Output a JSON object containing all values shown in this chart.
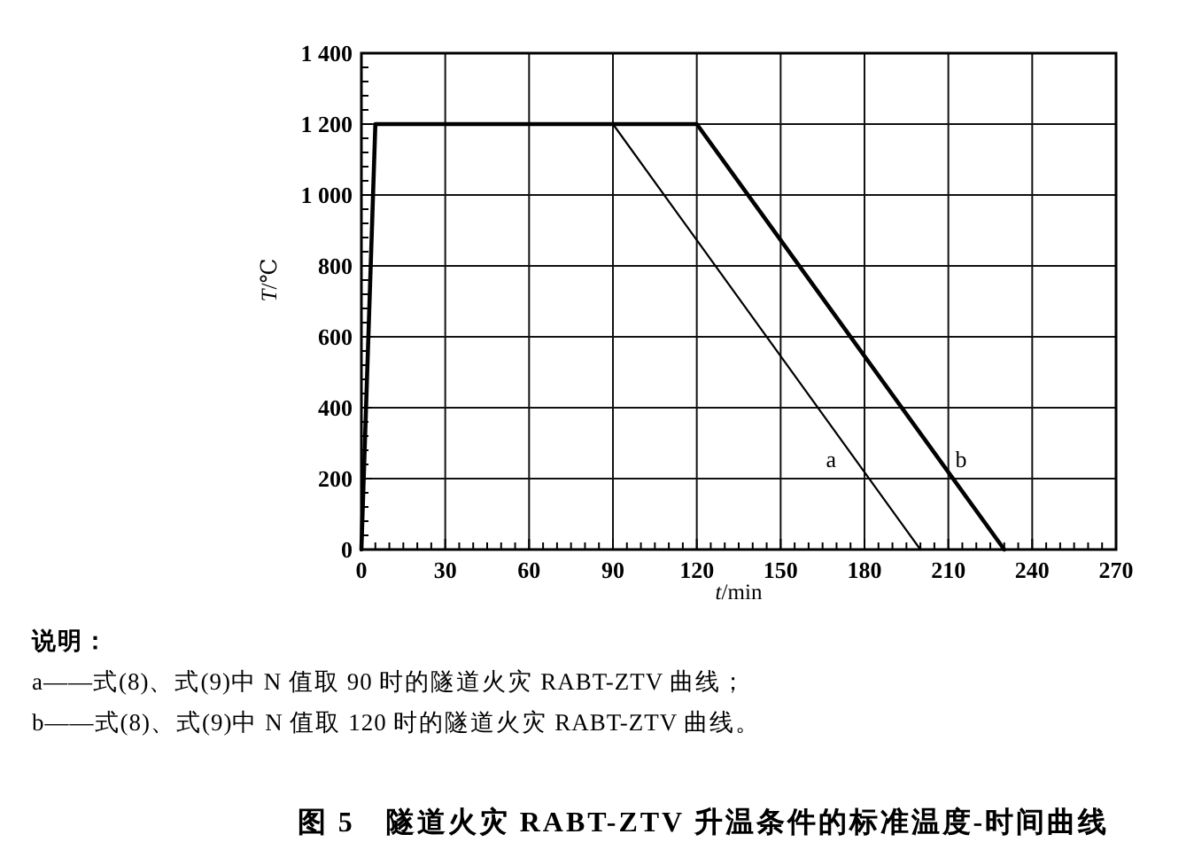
{
  "chart_data": {
    "type": "line",
    "title": "图 5　隧道火灾 RABT-ZTV 升温条件的标准温度-时间曲线",
    "xlabel": "t/min",
    "ylabel": "T/℃",
    "series": [
      {
        "name": "a",
        "color": "#000000",
        "x": [
          90,
          200
        ],
        "values": [
          1200,
          0
        ]
      },
      {
        "name": "b",
        "color": "#000000",
        "x": [
          0,
          5,
          120,
          230
        ],
        "values": [
          0,
          1200,
          1200,
          0
        ]
      }
    ],
    "xlim": [
      0,
      270
    ],
    "xticks": [
      0,
      {
        "value": 5,
        "label": null
      },
      {
        "value": 10,
        "label": null
      },
      {
        "value": 15,
        "label": null
      },
      {
        "value": 20,
        "label": null
      },
      {
        "value": 25,
        "label": null
      },
      30,
      {
        "value": 35,
        "label": null
      },
      {
        "value": 40,
        "label": null
      },
      {
        "value": 45,
        "label": null
      },
      {
        "value": 50,
        "label": null
      },
      {
        "value": 55,
        "label": null
      },
      60,
      {
        "value": 65,
        "label": null
      },
      {
        "value": 70,
        "label": null
      },
      {
        "value": 75,
        "label": null
      },
      {
        "value": 80,
        "label": null
      },
      {
        "value": 85,
        "label": null
      },
      90,
      {
        "value": 95,
        "label": null
      },
      {
        "value": 100,
        "label": null
      },
      {
        "value": 105,
        "label": null
      },
      {
        "value": 110,
        "label": null
      },
      {
        "value": 115,
        "label": null
      },
      120,
      {
        "value": 125,
        "label": null
      },
      {
        "value": 130,
        "label": null
      },
      {
        "value": 135,
        "label": null
      },
      {
        "value": 140,
        "label": null
      },
      {
        "value": 145,
        "label": null
      },
      150,
      {
        "value": 155,
        "label": null
      },
      {
        "value": 160,
        "label": null
      },
      {
        "value": 165,
        "label": null
      },
      {
        "value": 170,
        "label": null
      },
      {
        "value": 175,
        "label": null
      },
      180,
      {
        "value": 185,
        "label": null
      },
      {
        "value": 190,
        "label": null
      },
      {
        "value": 195,
        "label": null
      },
      {
        "value": 200,
        "label": null
      },
      {
        "value": 205,
        "label": null
      },
      210,
      {
        "value": 215,
        "label": null
      },
      {
        "value": 220,
        "label": null
      },
      {
        "value": 225,
        "label": null
      },
      {
        "value": 230,
        "label": null
      },
      {
        "value": 235,
        "label": null
      },
      240,
      {
        "value": 245,
        "label": null
      },
      {
        "value": 250,
        "label": null
      },
      {
        "value": 255,
        "label": null
      },
      {
        "value": 260,
        "label": null
      },
      {
        "value": 265,
        "label": null
      },
      270
    ],
    "ylim": [
      0,
      1400
    ],
    "yticks": [
      0,
      {
        "value": 40,
        "label": null
      },
      {
        "value": 80,
        "label": null
      },
      {
        "value": 120,
        "label": null
      },
      {
        "value": 160,
        "label": null
      },
      200,
      {
        "value": 240,
        "label": null
      },
      {
        "value": 280,
        "label": null
      },
      {
        "value": 320,
        "label": null
      },
      {
        "value": 360,
        "label": null
      },
      400,
      {
        "value": 440,
        "label": null
      },
      {
        "value": 480,
        "label": null
      },
      {
        "value": 520,
        "label": null
      },
      {
        "value": 560,
        "label": null
      },
      600,
      {
        "value": 640,
        "label": null
      },
      {
        "value": 680,
        "label": null
      },
      {
        "value": 720,
        "label": null
      },
      {
        "value": 760,
        "label": null
      },
      800,
      {
        "value": 840,
        "label": null
      },
      {
        "value": 880,
        "label": null
      },
      {
        "value": 920,
        "label": null
      },
      {
        "value": 960,
        "label": null
      },
      {
        "value": 1000,
        "label": "1 000"
      },
      {
        "value": 1040,
        "label": null
      },
      {
        "value": 1080,
        "label": null
      },
      {
        "value": 1120,
        "label": null
      },
      {
        "value": 1160,
        "label": null
      },
      {
        "value": 1200,
        "label": "1 200"
      },
      {
        "value": 1240,
        "label": null
      },
      {
        "value": 1280,
        "label": null
      },
      {
        "value": 1320,
        "label": null
      },
      {
        "value": 1360,
        "label": null
      },
      {
        "value": 1400,
        "label": "1 400"
      }
    ],
    "grid": true,
    "marker": "none",
    "line_style": "solid",
    "annotations": [
      "说明：",
      "a——式(8)、式(9)中 N 值取 90 时的隧道火灾 RABT-ZTV 曲线；",
      "b——式(8)、式(9)中 N 值取 120 时的隧道火灾 RABT-ZTV 曲线。"
    ]
  }
}
